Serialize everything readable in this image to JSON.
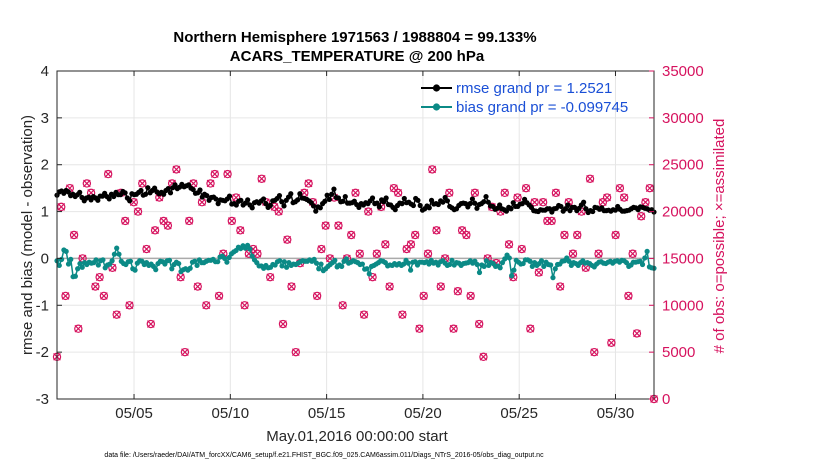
{
  "chart_data": {
    "type": "line",
    "title_line1": "Northern Hemisphere 1971563 / 1988804 = 99.133%",
    "title_line2": "ACARS_TEMPERATURE @ 200 hPa",
    "xlabel": "May.01,2016 00:00:00 start",
    "ylabel_left": "rmse and bias (model - observation)",
    "ylabel_right": "# of obs: o=possible; ×=assimilated",
    "footnote": "data file: /Users/raeder/DAI/ATM_forcXX/CAM6_setup/f.e21.FHIST_BGC.f09_025.CAM6assim.011/Diags_NTrS_2016-05/obs_diag_output.nc",
    "x_range_days": [
      1,
      32
    ],
    "x_tick_values": [
      5,
      10,
      15,
      20,
      25,
      30
    ],
    "x_tick_labels": [
      "05/05",
      "05/10",
      "05/15",
      "05/20",
      "05/25",
      "05/30"
    ],
    "ylim_left": [
      -3,
      4
    ],
    "y_ticks_left": [
      "-3",
      "-2",
      "-1",
      "0",
      "1",
      "2",
      "3",
      "4"
    ],
    "ylim_right": [
      0,
      35000
    ],
    "y_ticks_right": [
      "0",
      "5000",
      "10000",
      "15000",
      "20000",
      "25000",
      "30000",
      "35000"
    ],
    "legend": {
      "position": "top-right",
      "entries": [
        "rmse grand pr = 1.2521",
        "bias grand pr = -0.099745"
      ]
    },
    "colors": {
      "rmse": "#000000",
      "bias": "#0b8a86",
      "obs": "#d6125e",
      "zero_line": "#aaaaaa",
      "right_axis": "#d6125e",
      "legend_text": "#1a4fd6"
    },
    "series": [
      {
        "name": "rmse",
        "values": [
          1.35,
          1.42,
          1.44,
          1.39,
          1.45,
          1.42,
          1.34,
          1.37,
          1.32,
          1.36,
          1.41,
          1.3,
          1.23,
          1.29,
          1.31,
          1.25,
          1.32,
          1.29,
          1.24,
          1.33,
          1.33,
          1.39,
          1.32,
          1.27,
          1.37,
          1.32,
          1.41,
          1.36,
          1.36,
          1.43,
          1.4,
          1.29,
          1.23,
          1.38,
          1.36,
          1.37,
          1.41,
          1.45,
          1.35,
          1.37,
          1.51,
          1.4,
          1.45,
          1.5,
          1.42,
          1.38,
          1.41,
          1.37,
          1.45,
          1.49,
          1.4,
          1.51,
          1.57,
          1.49,
          1.52,
          1.58,
          1.53,
          1.55,
          1.57,
          1.5,
          1.47,
          1.39,
          1.4,
          1.46,
          1.31,
          1.37,
          1.34,
          1.24,
          1.3,
          1.31,
          1.27,
          1.17,
          1.25,
          1.24,
          1.23,
          1.27,
          1.33,
          1.16,
          1.17,
          1.14,
          1.22,
          1.24,
          1.14,
          1.18,
          1.25,
          1.14,
          1.08,
          1.19,
          1.21,
          1.18,
          1.23,
          1.27,
          1.17,
          1.09,
          1.13,
          1.23,
          1.24,
          1.28,
          1.34,
          1.21,
          1.12,
          1.24,
          1.31,
          1.38,
          1.19,
          1.21,
          1.25,
          1.38,
          1.29,
          1.28,
          1.26,
          1.23,
          1.19,
          1.12,
          1.01,
          1.1,
          1.08,
          1.17,
          1.22,
          1.35,
          1.26,
          1.37,
          1.48,
          1.3,
          1.29,
          1.21,
          1.22,
          1.32,
          1.18,
          1.18,
          1.19,
          1.22,
          1.15,
          1.09,
          1.17,
          1.14,
          1.19,
          1.17,
          1.23,
          1.29,
          1.17,
          1.18,
          1.1,
          1.25,
          1.21,
          1.29,
          1.15,
          1.14,
          1.09,
          1.04,
          1.13,
          1.18,
          1.17,
          1.28,
          1.19,
          1.2,
          1.16,
          1.13,
          1.28,
          1.24,
          1.13,
          1.03,
          1.06,
          1.12,
          1.08,
          1.24,
          1.16,
          1.17,
          1.15,
          1.23,
          1.2,
          1.3,
          1.23,
          1.11,
          1.08,
          1.04,
          1.06,
          1.13,
          1.17,
          1.18,
          1.17,
          1.1,
          1.17,
          1.27,
          1.18,
          1.07,
          1.15,
          1.17,
          1.21,
          1.32,
          1.2,
          1.12,
          1.11,
          1.05,
          1.07,
          1.14,
          1.06,
          1.04,
          1.01,
          1.09,
          1.06,
          1.19,
          1.11,
          1.11,
          1.16,
          1.17,
          1.26,
          1.19,
          1.14,
          1.09,
          1.02,
          1.01,
          1.0,
          1.04,
          1.03,
          1.03,
          1.06,
          1.06,
          0.99,
          1.06,
          1.07,
          1.13,
          1.11,
          1.01,
          1.06,
          1.14,
          1.02,
          1.09,
          1.09,
          1.02,
          1.07,
          1.14,
          1.2,
          1.06,
          0.98,
          1.02,
          1.0,
          1.09,
          1.08,
          1.05,
          1.08,
          1.02,
          1.02,
          1.03,
          1.01,
          1.04,
          1.03,
          1.11,
          1.05,
          1.01,
          1.01,
          1.02,
          1.03,
          1.06,
          1.09,
          1.08,
          1.04,
          1.1,
          1.09,
          1.07,
          1.06,
          1.03,
          1.04,
          0.99
        ]
      },
      {
        "name": "bias",
        "values": [
          -0.05,
          -0.15,
          -0.02,
          0.18,
          0.15,
          -0.12,
          -0.02,
          -0.39,
          -0.38,
          -0.22,
          -0.11,
          -0.19,
          -0.09,
          -0.13,
          -0.08,
          -0.1,
          -0.09,
          -0.03,
          -0.14,
          -0.05,
          -0.03,
          -0.2,
          -0.14,
          -0.12,
          -0.05,
          0.09,
          0.22,
          0.09,
          -0.06,
          -0.11,
          -0.13,
          -0.07,
          -0.06,
          -0.22,
          -0.25,
          -0.1,
          -0.05,
          -0.06,
          -0.13,
          -0.09,
          -0.15,
          -0.12,
          -0.17,
          -0.24,
          -0.11,
          -0.06,
          -0.07,
          -0.12,
          -0.05,
          -0.04,
          -0.22,
          -0.13,
          -0.08,
          -0.11,
          -0.28,
          -0.24,
          -0.22,
          -0.25,
          -0.21,
          -0.08,
          -0.06,
          -0.15,
          -0.03,
          -0.09,
          -0.09,
          -0.06,
          -0.04,
          -0.04,
          -0.02,
          -0.07,
          -0.07,
          0.03,
          0.05,
          0.0,
          -0.08,
          0.02,
          0.1,
          0.14,
          0.17,
          0.24,
          0.21,
          0.27,
          0.22,
          0.28,
          0.2,
          0.05,
          -0.03,
          -0.09,
          -0.16,
          -0.16,
          -0.21,
          -0.15,
          -0.2,
          -0.19,
          -0.13,
          -0.14,
          -0.07,
          -0.05,
          -0.16,
          -0.07,
          -0.19,
          -0.09,
          -0.15,
          -0.12,
          -0.13,
          -0.1,
          -0.07,
          -0.05,
          -0.06,
          -0.06,
          -0.03,
          -0.06,
          -0.02,
          -0.1,
          -0.22,
          -0.12,
          -0.26,
          -0.22,
          -0.17,
          -0.13,
          -0.09,
          -0.04,
          -0.18,
          -0.14,
          -0.17,
          -0.06,
          -0.01,
          -0.1,
          -0.08,
          -0.05,
          -0.07,
          -0.09,
          -0.13,
          -0.12,
          -0.23,
          -0.22,
          -0.33,
          -0.17,
          -0.15,
          -0.12,
          -0.09,
          -0.05,
          -0.06,
          -0.09,
          -0.16,
          -0.14,
          -0.15,
          -0.11,
          -0.14,
          -0.11,
          -0.15,
          -0.12,
          -0.04,
          -0.1,
          -0.25,
          -0.08,
          -0.07,
          -0.14,
          -0.08,
          -0.08,
          -0.09,
          -0.07,
          -0.12,
          -0.04,
          -0.1,
          -0.08,
          -0.14,
          -0.07,
          -0.05,
          -0.1,
          -0.15,
          -0.13,
          -0.04,
          -0.14,
          -0.09,
          -0.1,
          -0.15,
          -0.11,
          -0.1,
          -0.09,
          -0.05,
          -0.1,
          -0.06,
          -0.13,
          -0.3,
          -0.14,
          -0.17,
          -0.05,
          -0.15,
          -0.09,
          -0.11,
          -0.17,
          -0.16,
          -0.2,
          -0.09,
          -0.01,
          0.07,
          0.01,
          -0.37,
          -0.25,
          -0.04,
          -0.08,
          -0.12,
          -0.11,
          -0.03,
          -0.03,
          -0.06,
          -0.17,
          -0.09,
          -0.15,
          -0.11,
          -0.05,
          -0.17,
          -0.08,
          -0.13,
          -0.14,
          -0.41,
          -0.22,
          -0.13,
          -0.12,
          -0.06,
          -0.05,
          0.01,
          -0.06,
          -0.15,
          -0.09,
          -0.11,
          -0.15,
          -0.09,
          -0.05,
          -0.1,
          -0.09,
          -0.11,
          -0.15,
          -0.18,
          -0.12,
          -0.08,
          -0.07,
          -0.1,
          -0.11,
          -0.08,
          -0.06,
          -0.1,
          -0.06,
          -0.05,
          -0.08,
          -0.04,
          -0.05,
          -0.09,
          -0.17,
          -0.14,
          -0.08,
          -0.08,
          -0.07,
          -0.06,
          -0.13,
          0.01,
          0.15,
          -0.18,
          -0.2,
          -0.21
        ]
      },
      {
        "name": "obs_counts",
        "values": [
          4500,
          20500,
          11000,
          22500,
          17500,
          7500,
          15000,
          23000,
          22000,
          12000,
          13000,
          11000,
          24000,
          14000,
          9000,
          22000,
          19000,
          10000,
          21000,
          20000,
          23000,
          16000,
          8000,
          18000,
          21500,
          19000,
          18500,
          23000,
          24500,
          13000,
          5000,
          19000,
          23000,
          12000,
          21000,
          10000,
          23000,
          24000,
          11000,
          15500,
          24000,
          19000,
          21500,
          18000,
          10000,
          15500,
          16000,
          15500,
          23500,
          21000,
          13000,
          20500,
          20000,
          8000,
          17000,
          12000,
          5000,
          14500,
          22000,
          23000,
          21000,
          11000,
          16000,
          18500,
          15000,
          21500,
          18500,
          10000,
          15000,
          17500,
          22000,
          15500,
          9000,
          20000,
          13000,
          15500,
          20500,
          16500,
          12000,
          22500,
          22000,
          9000,
          16000,
          16500,
          17500,
          7500,
          11000,
          15500,
          24500,
          18000,
          12000,
          15000,
          22000,
          7500,
          11500,
          18000,
          17500,
          11000,
          22000,
          8000,
          4500,
          15000,
          20500,
          14500,
          20000,
          22000,
          16500,
          13000,
          21500,
          16000,
          22500,
          7500,
          21000,
          13500,
          21000,
          19000,
          19000,
          22000,
          12000,
          17500,
          21000,
          15500,
          17500,
          20000,
          14000,
          23500,
          5000,
          15500,
          21000,
          21500,
          6000,
          17500,
          22500,
          21500,
          11000,
          15500,
          7000,
          19500,
          21000,
          22500,
          0
        ]
      }
    ]
  }
}
